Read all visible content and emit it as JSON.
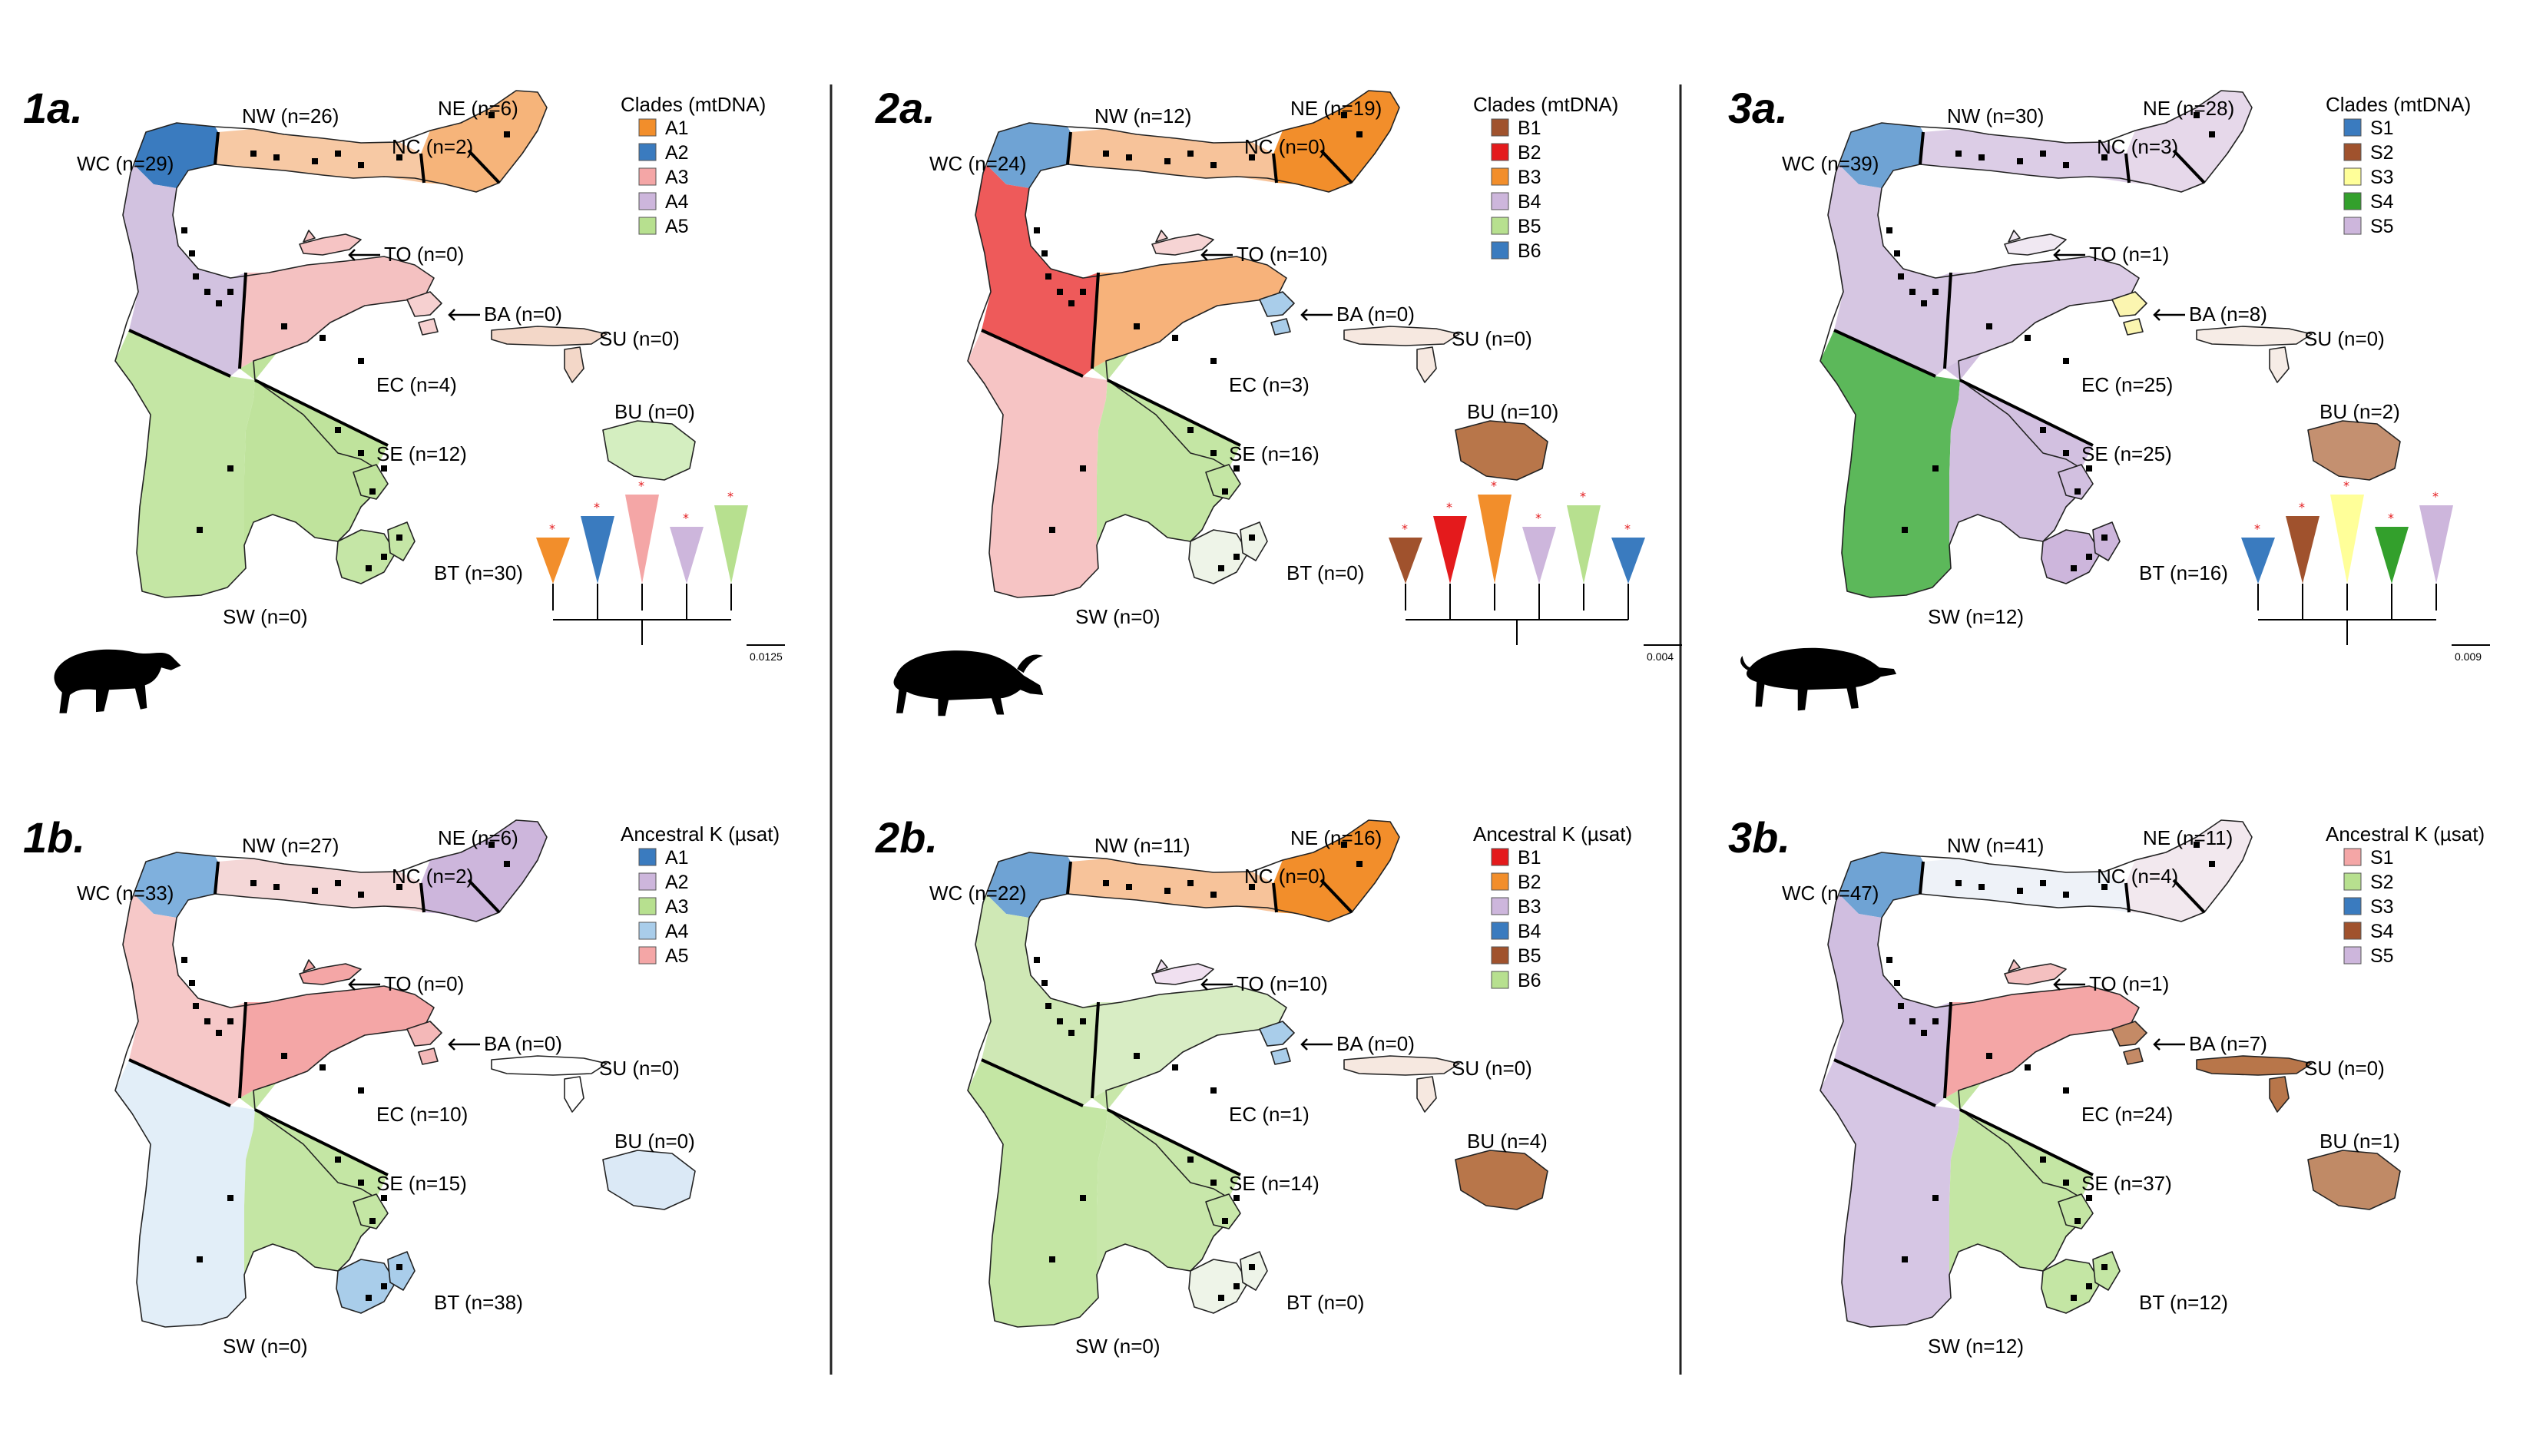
{
  "panels": [
    {
      "id": "1a",
      "letter": "1a.",
      "legend_title": "Clades (mtDNA)",
      "legend": [
        {
          "label": "A1",
          "color": "#f28e2b"
        },
        {
          "label": "A2",
          "color": "#3a7bbf"
        },
        {
          "label": "A3",
          "color": "#f4a6a6"
        },
        {
          "label": "A4",
          "color": "#cdb6dc"
        },
        {
          "label": "A5",
          "color": "#b7e08f"
        }
      ],
      "regions": {
        "NW": "NW (n=26)",
        "NE": "NE (n=6)",
        "WC": "WC (n=29)",
        "NC": "NC (n=2)",
        "TO": "TO (n=0)",
        "BA": "BA (n=0)",
        "SU": "SU (n=0)",
        "EC": "EC (n=4)",
        "BU": "BU (n=0)",
        "SE": "SE (n=12)",
        "BT": "BT (n=30)",
        "SW": "SW (n=0)"
      },
      "region_colors": {
        "NW": "#3a7bbf",
        "NC": "#f7c9a4",
        "NE": "#f6b47a",
        "WC": "#d2c2e0",
        "TO": "#f6c4c4",
        "EC": "#f4c1c1",
        "BA": "#f6d0d0",
        "SW": "#c4e6a4",
        "SE": "#bfe39c",
        "BT": "#c5e6a6",
        "SU": "#f3d7c8",
        "BU": "#d4eec0"
      },
      "scale_label": "0.0125",
      "animal": "babirusa-silhouette"
    },
    {
      "id": "1b",
      "letter": "1b.",
      "legend_title": "Ancestral K (µsat)",
      "legend": [
        {
          "label": "A1",
          "color": "#3a7bbf"
        },
        {
          "label": "A2",
          "color": "#cdb6dc"
        },
        {
          "label": "A3",
          "color": "#b7e08f"
        },
        {
          "label": "A4",
          "color": "#a9cdea"
        },
        {
          "label": "A5",
          "color": "#f4a6a6"
        }
      ],
      "regions": {
        "NW": "NW (n=27)",
        "NE": "NE (n=6)",
        "WC": "WC (n=33)",
        "NC": "NC (n=2)",
        "TO": "TO (n=0)",
        "BA": "BA (n=0)",
        "SU": "SU (n=0)",
        "EC": "EC (n=10)",
        "BU": "BU (n=0)",
        "SE": "SE (n=15)",
        "BT": "BT (n=38)",
        "SW": "SW (n=0)"
      },
      "region_colors": {
        "NW": "#7fb0dd",
        "NC": "#f4d7d7",
        "NE": "#cdb6dc",
        "WC": "#f6c8c8",
        "TO": "#f4a6a6",
        "EC": "#f4a6a6",
        "BA": "#f4b8b8",
        "SW": "#e2eef8",
        "SE": "#c4e6a4",
        "BT": "#a9cdea",
        "SU": "#ffffff",
        "BU": "#dbe9f6"
      },
      "scale_label": "",
      "animal": ""
    },
    {
      "id": "2a",
      "letter": "2a.",
      "legend_title": "Clades (mtDNA)",
      "legend": [
        {
          "label": "B1",
          "color": "#a0522d"
        },
        {
          "label": "B2",
          "color": "#e41a1c"
        },
        {
          "label": "B3",
          "color": "#f28e2b"
        },
        {
          "label": "B4",
          "color": "#cdb6dc"
        },
        {
          "label": "B5",
          "color": "#b7e08f"
        },
        {
          "label": "B6",
          "color": "#3a7bbf"
        }
      ],
      "regions": {
        "NW": "NW (n=12)",
        "NE": "NE (n=19)",
        "WC": "WC (n=24)",
        "NC": "NC (n=0)",
        "TO": "TO (n=10)",
        "BA": "BA (n=0)",
        "SU": "SU (n=0)",
        "EC": "EC (n=3)",
        "BU": "BU (n=10)",
        "SE": "SE (n=16)",
        "BT": "BT (n=0)",
        "SW": "SW (n=0)"
      },
      "region_colors": {
        "NW": "#6fa3d4",
        "NC": "#f7c39a",
        "NE": "#f28e2b",
        "WC": "#ee5a5a",
        "TO": "#f6d4d4",
        "EC": "#f7b27a",
        "BA": "#a9cdea",
        "SW": "#f6c4c4",
        "SE": "#c4e6a4",
        "BT": "#eef4e8",
        "SU": "#f6e8e0",
        "BU": "#b8764a"
      },
      "scale_label": "0.004",
      "animal": "anoa-silhouette"
    },
    {
      "id": "2b",
      "letter": "2b.",
      "legend_title": "Ancestral K (µsat)",
      "legend": [
        {
          "label": "B1",
          "color": "#e41a1c"
        },
        {
          "label": "B2",
          "color": "#f28e2b"
        },
        {
          "label": "B3",
          "color": "#cdb6dc"
        },
        {
          "label": "B4",
          "color": "#3a7bbf"
        },
        {
          "label": "B5",
          "color": "#a0522d"
        },
        {
          "label": "B6",
          "color": "#b7e08f"
        }
      ],
      "regions": {
        "NW": "NW (n=11)",
        "NE": "NE (n=16)",
        "WC": "WC (n=22)",
        "NC": "NC (n=0)",
        "TO": "TO (n=10)",
        "BA": "BA (n=0)",
        "SU": "SU (n=0)",
        "EC": "EC (n=1)",
        "BU": "BU (n=4)",
        "SE": "SE (n=14)",
        "BT": "BT (n=0)",
        "SW": "SW (n=0)"
      },
      "region_colors": {
        "NW": "#6fa3d4",
        "NC": "#f7c39a",
        "NE": "#f28e2b",
        "WC": "#cfe8b5",
        "TO": "#f0e0f0",
        "EC": "#d8edc4",
        "BA": "#a9cdea",
        "SW": "#c4e6a4",
        "SE": "#c8e7aa",
        "BT": "#eef4e8",
        "SU": "#f6e8e0",
        "BU": "#b8764a"
      },
      "scale_label": "",
      "animal": ""
    },
    {
      "id": "3a",
      "letter": "3a.",
      "legend_title": "Clades (mtDNA)",
      "legend": [
        {
          "label": "S1",
          "color": "#3a7bbf"
        },
        {
          "label": "S2",
          "color": "#a0522d"
        },
        {
          "label": "S3",
          "color": "#ffff99"
        },
        {
          "label": "S4",
          "color": "#33a02c"
        },
        {
          "label": "S5",
          "color": "#cdb6dc"
        }
      ],
      "regions": {
        "NW": "NW (n=30)",
        "NE": "NE (n=28)",
        "WC": "WC (n=39)",
        "NC": "NC (n=3)",
        "TO": "TO (n=1)",
        "BA": "BA (n=8)",
        "SU": "SU (n=0)",
        "EC": "EC (n=25)",
        "BU": "BU (n=2)",
        "SE": "SE (n=25)",
        "BT": "BT (n=16)",
        "SW": "SW (n=12)"
      },
      "region_colors": {
        "NW": "#6fa3d4",
        "NC": "#dccde6",
        "NE": "#e6d8ea",
        "WC": "#d6c6e2",
        "TO": "#f0e8f2",
        "EC": "#dcccE6",
        "BA": "#fbf5b0",
        "SW": "#5cb85a",
        "SE": "#d2c0e0",
        "BT": "#cdb6dc",
        "SU": "#f6ece6",
        "BU": "#c49070"
      },
      "scale_label": "0.009",
      "animal": "pig-silhouette"
    },
    {
      "id": "3b",
      "letter": "3b.",
      "legend_title": "Ancestral K (µsat)",
      "legend": [
        {
          "label": "S1",
          "color": "#f4a6a6"
        },
        {
          "label": "S2",
          "color": "#b7e08f"
        },
        {
          "label": "S3",
          "color": "#3a7bbf"
        },
        {
          "label": "S4",
          "color": "#a0522d"
        },
        {
          "label": "S5",
          "color": "#cdb6dc"
        }
      ],
      "regions": {
        "NW": "NW (n=41)",
        "NE": "NE (n=11)",
        "WC": "WC (n=47)",
        "NC": "NC (n=4)",
        "TO": "TO (n=1)",
        "BA": "BA (n=7)",
        "SU": "SU (n=0)",
        "EC": "EC (n=24)",
        "BU": "BU (n=1)",
        "SE": "SE (n=37)",
        "BT": "BT (n=12)",
        "SW": "SW (n=12)"
      },
      "region_colors": {
        "NW": "#6fa3d4",
        "NC": "#eef2f8",
        "NE": "#f2e8ee",
        "WC": "#d0bee0",
        "TO": "#f4c0c0",
        "EC": "#f4a6a6",
        "BA": "#c48a66",
        "SW": "#d6c6e4",
        "SE": "#c4e6a4",
        "BT": "#c4e6a4",
        "SU": "#b8764a",
        "BU": "#c08a66"
      },
      "scale_label": "",
      "animal": ""
    }
  ]
}
